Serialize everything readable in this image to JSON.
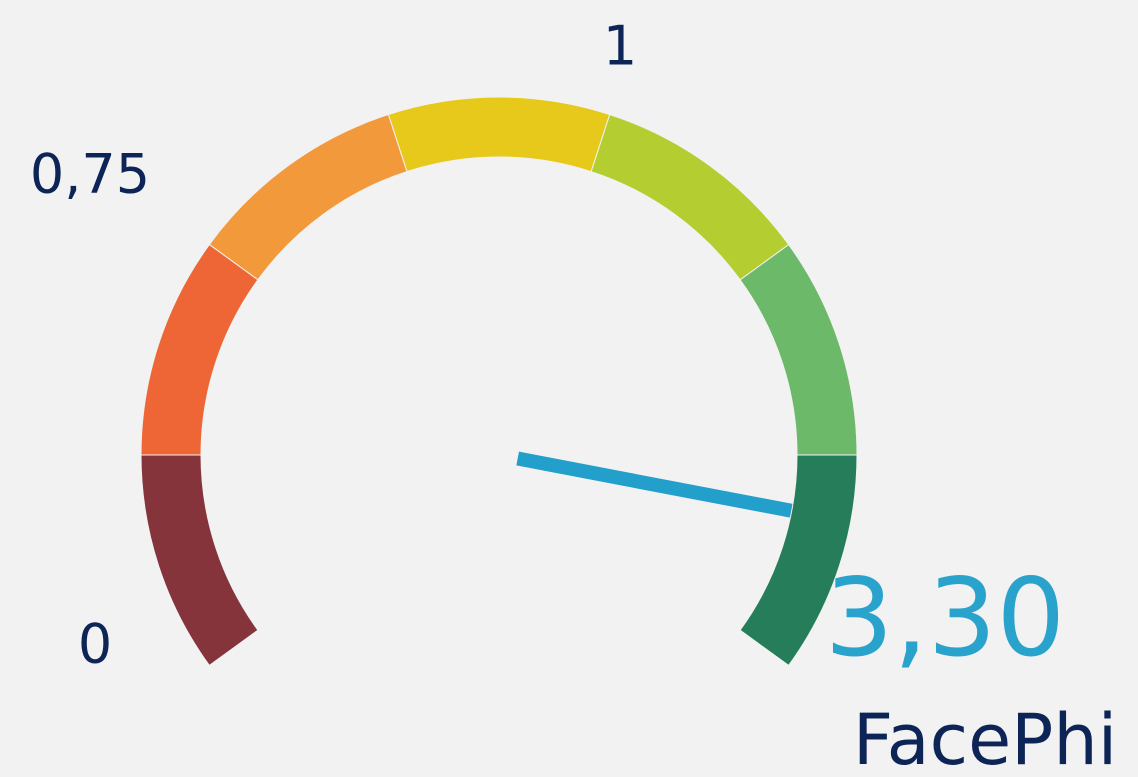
{
  "chart_data": {
    "type": "gauge",
    "name": "FacePhi",
    "value": 3.3,
    "value_label": "3,30",
    "ylim": [
      0,
      4
    ],
    "yticks": [
      {
        "value": 0,
        "label": "0"
      },
      {
        "value": 0.75,
        "label": "0,75"
      },
      {
        "value": 1,
        "label": "1"
      }
    ],
    "colors": [
      "#84343a",
      "#ee6636",
      "#f2993c",
      "#e6c91a",
      "#b4cd30",
      "#6db96a",
      "#267d5a"
    ],
    "needle_color": "#229fcb"
  }
}
